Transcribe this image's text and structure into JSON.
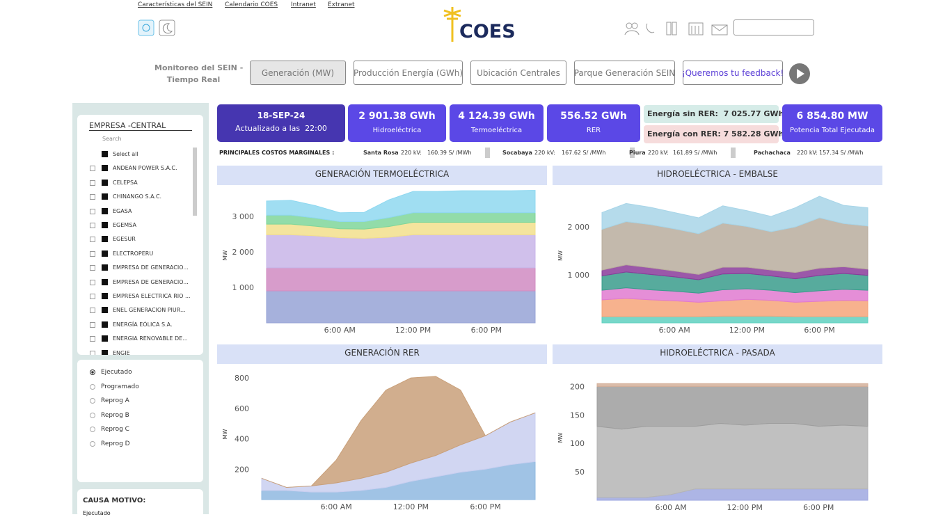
{
  "header": {
    "links": [
      "Características del SEIN",
      "Calendario COES",
      "Intranet",
      "Extranet"
    ],
    "logo": "COES"
  },
  "nav": {
    "title_lines": [
      "Monitoreo del SEIN -",
      "Tiempo Real"
    ],
    "buttons": [
      "Generación (MW)",
      "Producción Energía (GWh)",
      "Ubicación Centrales",
      "Parque Generación SEIN",
      "¡Queremos tu feedback!"
    ]
  },
  "kpis": {
    "date": "18-SEP-24",
    "updated": "Actualizado a las  22:00",
    "cards": [
      {
        "value": "2 901.38 GWh",
        "label": "Hidroeléctrica"
      },
      {
        "value": "4 124.39 GWh",
        "label": "Termoeléctrica"
      },
      {
        "value": "556.52 GWh",
        "label": "RER"
      }
    ],
    "energy": [
      {
        "label": "Energía sin RER:",
        "value": "7 025.77 GWh"
      },
      {
        "label": "Energía con RER:",
        "value": "7 582.28 GWh"
      }
    ],
    "total": {
      "value": "6 854.80 MW",
      "label": "Potencia Total Ejecutada"
    }
  },
  "marginal_costs": {
    "title": "PRINCIPALES COSTOS MARGINALES :",
    "items": [
      {
        "node": "Santa Rosa",
        "kv": "220 kV:",
        "cost": "160.39 S/ /MWh"
      },
      {
        "node": "Socabaya",
        "kv": "220 kV:",
        "cost": "167.62 S/ /MWh"
      },
      {
        "node": "Piura",
        "kv": "220 kV:",
        "cost": "161.89 S/ /MWh"
      },
      {
        "node": "Pachachaca",
        "kv": "220 kV:",
        "cost": "157.34 S/ /MWh"
      }
    ]
  },
  "filter": {
    "title": "EMPRESA -CENTRAL",
    "search": "Search",
    "items": [
      "Select all",
      "ANDEAN POWER S.A.C.",
      "CELEPSA",
      "CHINANGO S.A.C.",
      "EGASA",
      "EGEMSA",
      "EGESUR",
      "ELECTROPERU",
      "EMPRESA DE GENERACIO...",
      "EMPRESA DE GENERACIO...",
      "EMPRESA ELECTRICA RIO ...",
      "ENEL GENERACION PIUR...",
      "ENERGÍA EÓLICA S.A.",
      "ENERGIA RENOVABLE DE...",
      "ENGIE"
    ]
  },
  "options": {
    "items": [
      "Ejecutado",
      "Programado",
      "Reprog A",
      "Reprog B",
      "Reprog C",
      "Reprog D"
    ],
    "selected": 0
  },
  "cause": {
    "title": "CAUSA MOTIVO:",
    "value": "Ejecutado"
  },
  "chart_data": [
    {
      "type": "area",
      "stacked": true,
      "title": "GENERACIÓN TERMOELÉCTRICA",
      "y_label": "MW",
      "x": [
        0,
        2,
        4,
        6,
        8,
        10,
        12,
        14,
        16,
        18,
        20,
        22
      ],
      "xlim": [
        0,
        22
      ],
      "xticks": [
        {
          "value": 6,
          "label": "6:00 AM"
        },
        {
          "value": 12,
          "label": "12:00 PM"
        },
        {
          "value": 18,
          "label": "6:00 PM"
        }
      ],
      "ylim": [
        0,
        3800
      ],
      "yticks": [
        {
          "value": 1000,
          "label": "1 000"
        },
        {
          "value": 2000,
          "label": "2 000"
        },
        {
          "value": 3000,
          "label": "3 000"
        }
      ],
      "series": [
        {
          "color": "#97a3d6",
          "values": [
            900,
            900,
            900,
            900,
            900,
            900,
            900,
            900,
            900,
            900,
            900,
            900
          ]
        },
        {
          "color": "#d08bc2",
          "values": [
            650,
            650,
            650,
            650,
            650,
            650,
            650,
            650,
            650,
            650,
            650,
            650
          ]
        },
        {
          "color": "#c8b5e8",
          "values": [
            930,
            930,
            900,
            850,
            830,
            860,
            930,
            930,
            930,
            930,
            930,
            930
          ]
        },
        {
          "color": "#f2df8c",
          "values": [
            300,
            300,
            270,
            250,
            260,
            300,
            350,
            350,
            350,
            350,
            350,
            350
          ]
        },
        {
          "color": "#7fd69a",
          "values": [
            250,
            250,
            230,
            200,
            210,
            250,
            270,
            270,
            270,
            270,
            270,
            270
          ]
        },
        {
          "color": "#8fd8f0",
          "values": [
            400,
            420,
            350,
            250,
            260,
            500,
            600,
            600,
            620,
            620,
            620,
            630
          ]
        }
      ]
    },
    {
      "type": "area",
      "stacked": true,
      "title": "HIDROELÉCTRICA - EMBALSE",
      "y_label": "MW",
      "x": [
        0,
        2,
        4,
        6,
        8,
        10,
        12,
        14,
        16,
        18,
        20,
        22
      ],
      "xlim": [
        0,
        22
      ],
      "xticks": [
        {
          "value": 6,
          "label": "6:00 AM"
        },
        {
          "value": 12,
          "label": "12:00 PM"
        },
        {
          "value": 18,
          "label": "6:00 PM"
        }
      ],
      "ylim": [
        0,
        2800
      ],
      "yticks": [
        {
          "value": 1000,
          "label": "1 000"
        },
        {
          "value": 2000,
          "label": "2 000"
        }
      ],
      "series": [
        {
          "color": "#5fd0c0",
          "values": [
            130,
            130,
            130,
            130,
            130,
            140,
            140,
            140,
            130,
            130,
            130,
            130
          ]
        },
        {
          "color": "#f6a47a",
          "values": [
            350,
            380,
            350,
            330,
            300,
            320,
            350,
            330,
            300,
            320,
            340,
            330
          ]
        },
        {
          "color": "#e07ad0",
          "values": [
            200,
            220,
            210,
            200,
            190,
            230,
            220,
            210,
            200,
            220,
            230,
            220
          ]
        },
        {
          "color": "#3a9c8c",
          "values": [
            300,
            330,
            320,
            300,
            280,
            330,
            320,
            300,
            290,
            320,
            330,
            310
          ]
        },
        {
          "color": "#8a3b9a",
          "values": [
            120,
            150,
            140,
            120,
            110,
            140,
            130,
            120,
            130,
            150,
            140,
            130
          ]
        },
        {
          "color": "#b9ad9d",
          "values": [
            850,
            900,
            900,
            880,
            850,
            920,
            850,
            800,
            950,
            1050,
            900,
            900
          ]
        },
        {
          "color": "#a8d5e8",
          "values": [
            350,
            380,
            360,
            340,
            330,
            360,
            330,
            320,
            400,
            450,
            380,
            380
          ]
        }
      ]
    },
    {
      "type": "area",
      "stacked": true,
      "title": "GENERACIÓN RER",
      "y_label": "MW",
      "x": [
        0,
        2,
        4,
        6,
        8,
        10,
        12,
        14,
        16,
        18,
        20,
        22
      ],
      "xlim": [
        0,
        22
      ],
      "xticks": [
        {
          "value": 6,
          "label": "6:00 AM"
        },
        {
          "value": 12,
          "label": "12:00 PM"
        },
        {
          "value": 18,
          "label": "6:00 PM"
        }
      ],
      "ylim": [
        0,
        860
      ],
      "yticks": [
        200,
        400,
        600,
        800
      ],
      "series": [
        {
          "color": "#8fb8e0",
          "values": [
            60,
            60,
            50,
            50,
            60,
            80,
            120,
            150,
            180,
            200,
            230,
            250
          ]
        },
        {
          "color": "#c9cff0",
          "values": [
            80,
            20,
            40,
            60,
            80,
            100,
            120,
            140,
            180,
            220,
            280,
            320
          ]
        },
        {
          "color": "#c9a07a",
          "values": [
            0,
            0,
            0,
            150,
            380,
            540,
            560,
            520,
            360,
            0,
            0,
            0
          ]
        }
      ]
    },
    {
      "type": "area",
      "stacked": true,
      "title": "HIDROELÉCTRICA - PASADA",
      "y_label": "MW",
      "x": [
        0,
        2,
        4,
        6,
        8,
        10,
        12,
        14,
        16,
        18,
        20,
        22
      ],
      "xlim": [
        0,
        22
      ],
      "xticks": [
        {
          "value": 6,
          "label": "6:00 AM"
        },
        {
          "value": 12,
          "label": "12:00 PM"
        },
        {
          "value": 18,
          "label": "6:00 PM"
        }
      ],
      "ylim": [
        0,
        220
      ],
      "yticks": [
        50,
        100,
        150,
        200
      ],
      "series": [
        {
          "color": "#9fa8e0",
          "values": [
            5,
            5,
            5,
            10,
            20,
            20,
            20,
            20,
            20,
            20,
            20,
            20
          ]
        },
        {
          "color": "#b5b5b5",
          "values": [
            125,
            120,
            125,
            120,
            110,
            115,
            112,
            115,
            115,
            110,
            112,
            110
          ]
        },
        {
          "color": "#9e9e9e",
          "values": [
            70,
            75,
            70,
            70,
            70,
            65,
            68,
            65,
            65,
            70,
            68,
            70
          ]
        },
        {
          "color": "#d4b09a",
          "values": [
            5,
            5,
            5,
            5,
            5,
            5,
            5,
            5,
            5,
            5,
            5,
            5
          ]
        }
      ]
    }
  ]
}
